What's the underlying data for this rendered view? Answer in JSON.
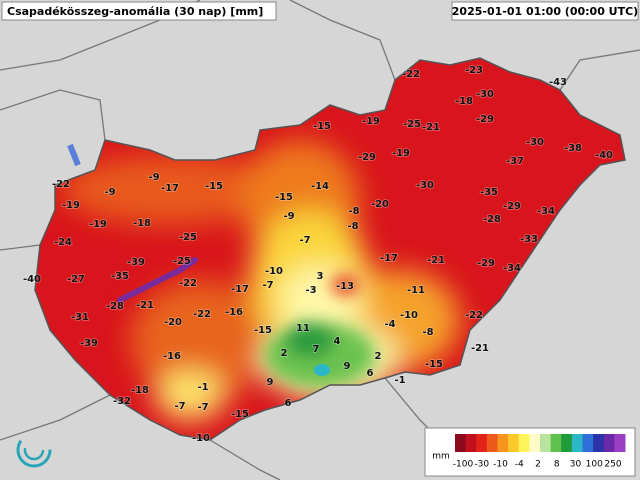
{
  "title": "Csapadékösszeg-anomália (30 nap) [mm]",
  "timestamp": "2025-01-01 01:00 (00:00 UTC)",
  "station_values": [
    -22,
    -23,
    -43,
    -18,
    -30,
    -29,
    -15,
    -19,
    -25,
    -21,
    -30,
    -38,
    -40,
    -29,
    -19,
    -37,
    -22,
    -9,
    -9,
    -17,
    -15,
    -14,
    -30,
    -35,
    -19,
    -15,
    -20,
    -29,
    -34,
    -19,
    -18,
    -9,
    -8,
    -28,
    -8,
    -24,
    -25,
    -7,
    -33,
    -39,
    -25,
    -17,
    -21,
    -29,
    -34,
    -40,
    -27,
    -35,
    -22,
    -10,
    3,
    -13,
    -7,
    -17,
    -3,
    -11,
    -28,
    -21,
    -22,
    -16,
    -10,
    -31,
    -20,
    -22,
    -4,
    -15,
    11,
    -8,
    4,
    -39,
    7,
    2,
    -21,
    -16,
    2,
    9,
    -15,
    6,
    -1,
    9,
    -1,
    -18,
    -32,
    6,
    -7,
    -7,
    -15,
    -10
  ],
  "legend": {
    "unit": "mm",
    "labels": [
      -100,
      -30,
      -10,
      -4,
      2,
      8,
      30,
      100,
      250
    ],
    "colors": [
      "#8b0a1c",
      "#c0101e",
      "#e2231a",
      "#ee5a1c",
      "#f7941d",
      "#fcc92c",
      "#fff35a",
      "#fffbc8",
      "#b7e59d",
      "#5fc04d",
      "#1f9b3a",
      "#2cb7c9",
      "#2f6fd8",
      "#2b33a8",
      "#6a2aa8",
      "#9a3fc4"
    ]
  }
}
